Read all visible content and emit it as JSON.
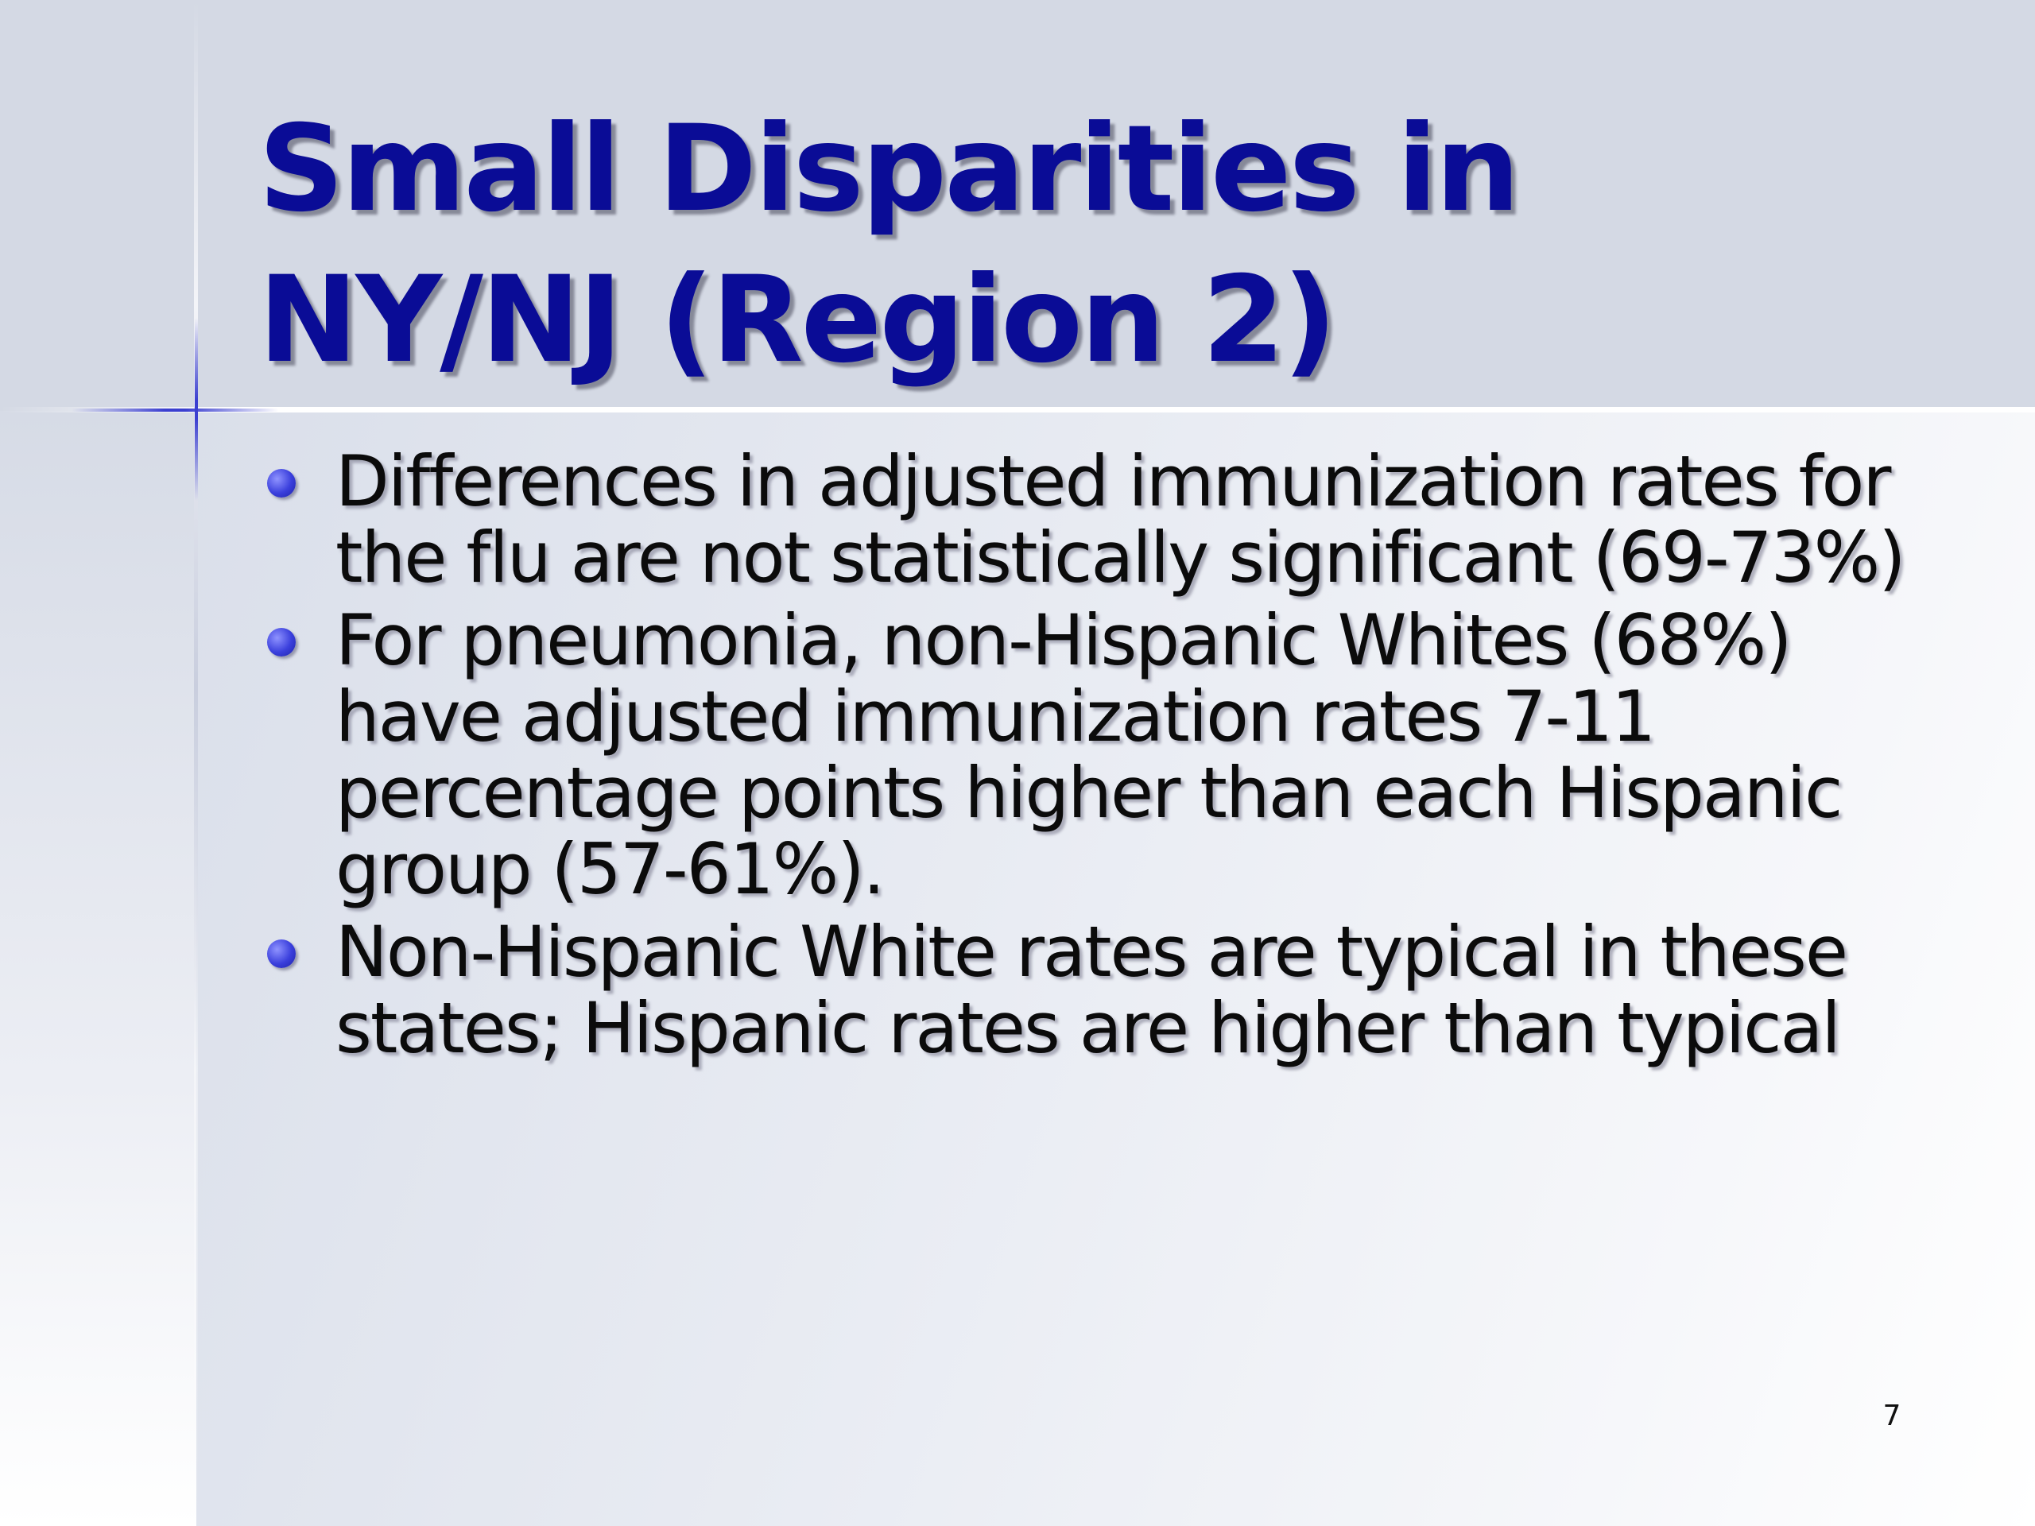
{
  "slide": {
    "title_lines": [
      "Small Disparities in",
      "NY/NJ (Region 2)"
    ],
    "bullets": [
      "Differences in adjusted immunization rates for the flu are not statistically significant (69-73%)",
      "For pneumonia, non-Hispanic Whites (68%) have adjusted immunization rates 7-11 percentage points higher than each Hispanic group (57-61%).",
      "Non-Hispanic White rates are typical in these states; Hispanic rates are higher than typical"
    ],
    "page_number": "7"
  },
  "colors": {
    "title": "#0a0c96",
    "body_text": "#0b0b0b",
    "bullet": "#3a3fdc",
    "header_band": "#d4d9e4"
  },
  "icons": {
    "bullet": "bullet-dot-icon",
    "corner_mark": "star-cross-icon"
  }
}
